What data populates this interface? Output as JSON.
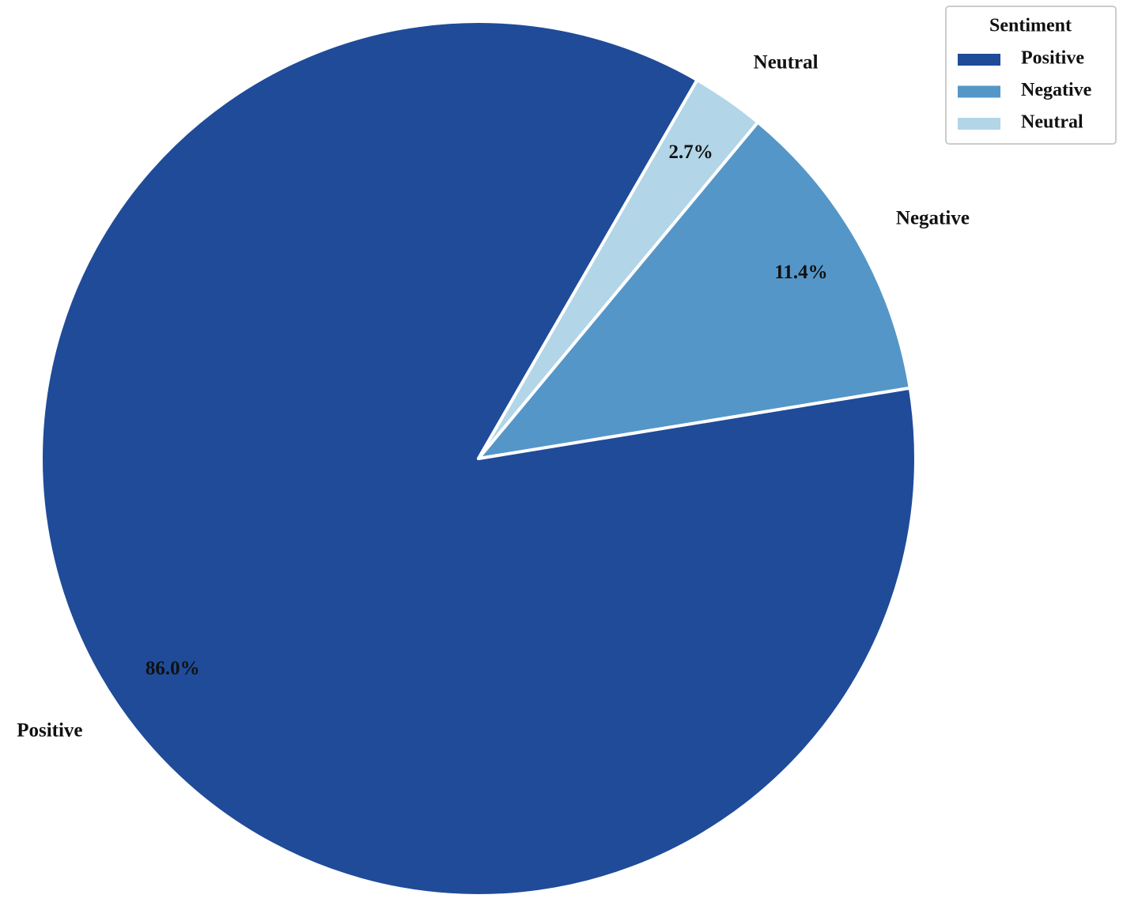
{
  "chart_data": {
    "type": "pie",
    "categories": [
      "Positive",
      "Negative",
      "Neutral"
    ],
    "values": [
      86.0,
      11.4,
      2.7
    ],
    "value_labels": [
      "86.0%",
      "11.4%",
      "2.7%"
    ],
    "colors": [
      "#1f4b99",
      "#5596c8",
      "#b2d5e8"
    ],
    "legend_title": "Sentiment",
    "legend": "upper right"
  }
}
